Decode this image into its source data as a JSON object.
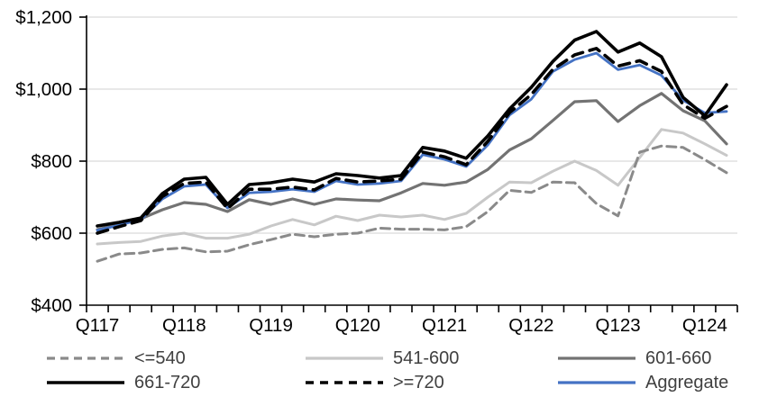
{
  "chart_data": {
    "type": "line",
    "x": [
      "Q117",
      "Q217",
      "Q317",
      "Q417",
      "Q118",
      "Q218",
      "Q318",
      "Q418",
      "Q119",
      "Q219",
      "Q319",
      "Q419",
      "Q120",
      "Q220",
      "Q320",
      "Q420",
      "Q121",
      "Q221",
      "Q321",
      "Q421",
      "Q122",
      "Q222",
      "Q322",
      "Q422",
      "Q123",
      "Q223",
      "Q323",
      "Q423",
      "Q124",
      "Q224"
    ],
    "x_axis": {
      "shown_labels": [
        "Q117",
        "Q118",
        "Q119",
        "Q120",
        "Q121",
        "Q122",
        "Q123",
        "Q124"
      ],
      "label_every": 4,
      "first_label_index": 0
    },
    "y_axis": {
      "min": 400,
      "max": 1200,
      "tick_step": 200,
      "tick_labels": [
        "$400",
        "$600",
        "$800",
        "$1,000",
        "$1,200"
      ]
    },
    "grid": "horizontal",
    "legend_position": "bottom",
    "series": [
      {
        "name": "<=540",
        "color": "#8A8A8A",
        "dash": "10 6",
        "legend_dash": "9 6",
        "width": 3,
        "values": [
          522,
          542,
          545,
          555,
          559,
          548,
          550,
          568,
          582,
          597,
          590,
          597,
          600,
          614,
          611,
          611,
          609,
          618,
          660,
          719,
          713,
          742,
          740,
          682,
          648,
          825,
          842,
          838,
          804,
          768
        ]
      },
      {
        "name": "541-600",
        "color": "#C8C8C8",
        "dash": null,
        "legend_dash": null,
        "width": 3,
        "values": [
          570,
          574,
          577,
          592,
          600,
          586,
          586,
          597,
          620,
          638,
          623,
          647,
          635,
          650,
          645,
          650,
          638,
          655,
          700,
          742,
          740,
          772,
          800,
          774,
          733,
          810,
          888,
          878,
          848,
          816
        ]
      },
      {
        "name": "601-660",
        "color": "#737373",
        "dash": null,
        "legend_dash": null,
        "width": 3.2,
        "values": [
          610,
          625,
          640,
          665,
          685,
          680,
          660,
          693,
          680,
          695,
          680,
          695,
          692,
          690,
          712,
          738,
          733,
          742,
          777,
          831,
          862,
          913,
          965,
          968,
          910,
          954,
          988,
          940,
          912,
          848
        ]
      },
      {
        "name": "661-720",
        "color": "#000000",
        "dash": null,
        "legend_dash": null,
        "width": 3.6,
        "values": [
          620,
          630,
          642,
          710,
          750,
          755,
          680,
          735,
          740,
          750,
          742,
          765,
          760,
          753,
          760,
          838,
          828,
          808,
          870,
          945,
          1005,
          1077,
          1136,
          1160,
          1103,
          1128,
          1090,
          977,
          926,
          1012
        ]
      },
      {
        "name": ">=720",
        "color": "#000000",
        "dash": "12 8",
        "legend_dash": "9 7",
        "width": 3.6,
        "values": [
          600,
          618,
          635,
          702,
          738,
          742,
          668,
          722,
          722,
          728,
          720,
          752,
          742,
          745,
          750,
          825,
          812,
          790,
          855,
          935,
          985,
          1055,
          1095,
          1113,
          1064,
          1079,
          1049,
          957,
          919,
          952
        ]
      },
      {
        "name": "Aggregate",
        "color": "#4472C4",
        "dash": null,
        "legend_dash": null,
        "width": 2.8,
        "values": [
          608,
          622,
          638,
          695,
          730,
          735,
          670,
          712,
          715,
          722,
          715,
          745,
          735,
          738,
          745,
          818,
          805,
          785,
          845,
          928,
          972,
          1049,
          1082,
          1100,
          1054,
          1067,
          1038,
          969,
          934,
          938
        ]
      }
    ],
    "z_order": [
      1,
      0,
      2,
      5,
      3,
      4
    ],
    "colors": {
      "gridline": "#D9D9D9",
      "axis": "#000000",
      "axis_text": "#000000",
      "legend_text": "#404040"
    }
  }
}
